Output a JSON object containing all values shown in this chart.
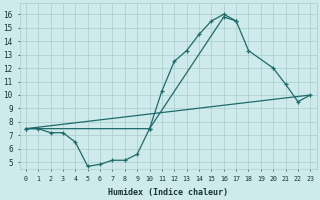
{
  "xlabel": "Humidex (Indice chaleur)",
  "bg_color": "#ceeaea",
  "line_color": "#1e6b6b",
  "grid_color": "#a8cccc",
  "xlim": [
    -0.5,
    23.5
  ],
  "ylim": [
    4.5,
    16.8
  ],
  "xticks": [
    0,
    1,
    2,
    3,
    4,
    5,
    6,
    7,
    8,
    9,
    10,
    11,
    12,
    13,
    14,
    15,
    16,
    17,
    18,
    19,
    20,
    21,
    22,
    23
  ],
  "yticks": [
    5,
    6,
    7,
    8,
    9,
    10,
    11,
    12,
    13,
    14,
    15,
    16
  ],
  "line1_x": [
    0,
    1,
    2,
    3,
    4,
    5,
    6,
    7,
    8,
    9,
    10,
    11,
    12,
    13,
    14,
    15,
    16,
    17
  ],
  "line1_y": [
    7.5,
    7.5,
    7.2,
    7.2,
    6.5,
    4.7,
    4.85,
    5.15,
    5.15,
    5.6,
    7.5,
    10.3,
    12.5,
    13.3,
    14.5,
    15.5,
    16.0,
    15.5
  ],
  "line2_x": [
    0,
    23
  ],
  "line2_y": [
    7.5,
    10.0
  ],
  "line3_x": [
    0,
    10,
    16,
    17,
    18,
    20,
    21,
    22,
    23
  ],
  "line3_y": [
    7.5,
    7.5,
    15.8,
    15.5,
    13.3,
    12.0,
    10.8,
    9.5,
    10.0
  ]
}
